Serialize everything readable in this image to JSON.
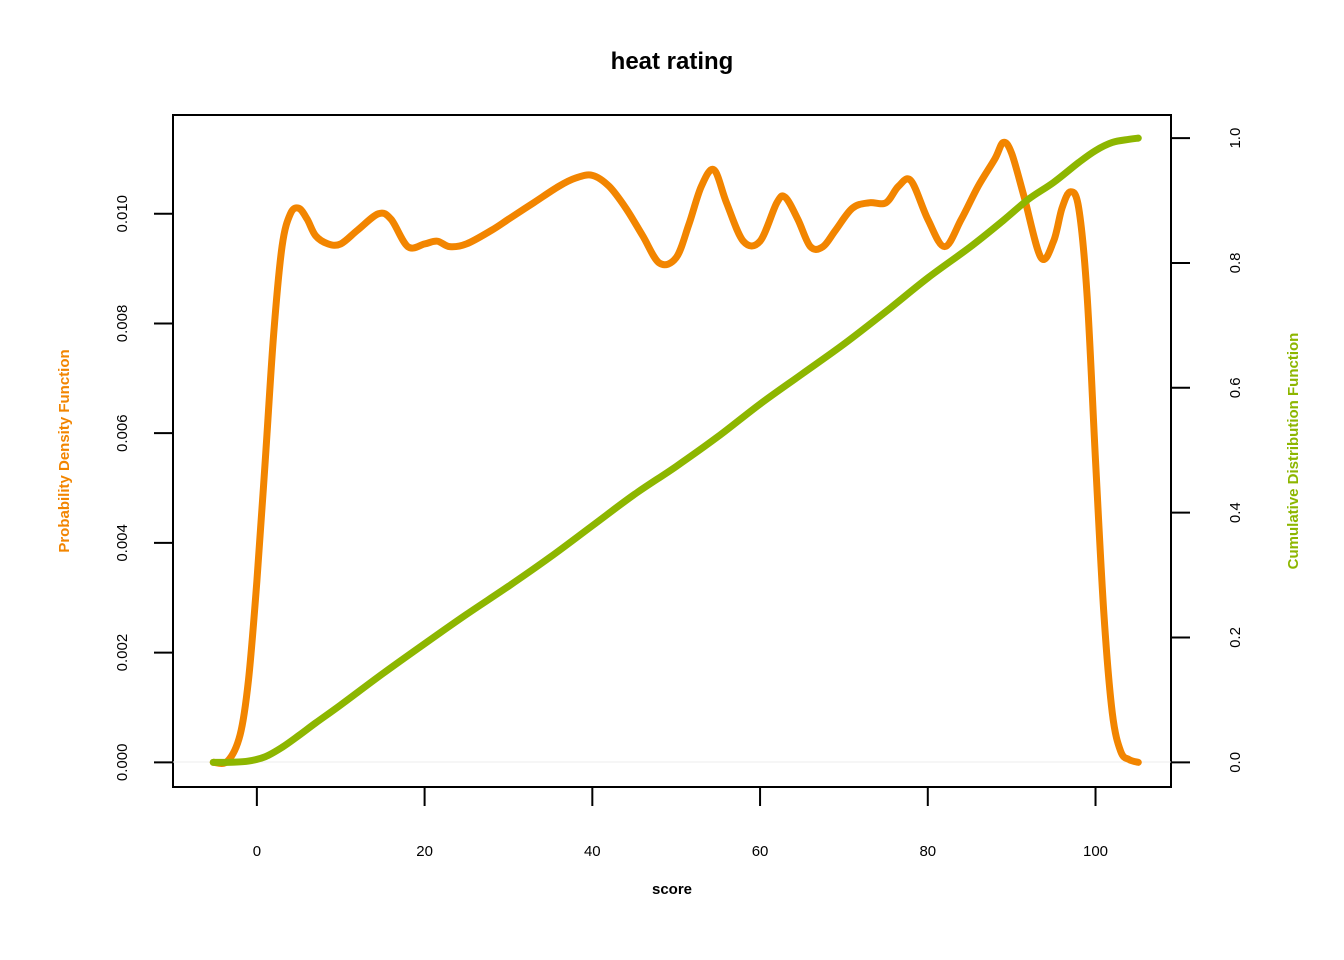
{
  "chart_data": {
    "type": "line",
    "title": "heat rating",
    "xlabel": "score",
    "ylabel_left": "Probability Density Function",
    "ylabel_right": "Cumulative Distribution Function",
    "xlim": [
      -10,
      109
    ],
    "ylim_left": [
      -0.00045,
      0.0118
    ],
    "ylim_right": [
      -0.0395,
      1.037
    ],
    "x_ticks": [
      0,
      20,
      40,
      60,
      80,
      100
    ],
    "x_tick_labels": [
      "0",
      "20",
      "40",
      "60",
      "80",
      "100"
    ],
    "y_left_ticks": [
      0,
      0.002,
      0.004,
      0.006,
      0.008,
      0.01
    ],
    "y_left_tick_labels": [
      "0.000",
      "0.002",
      "0.004",
      "0.006",
      "0.008",
      "0.010"
    ],
    "y_right_ticks": [
      0,
      0.2,
      0.4,
      0.6,
      0.8,
      1.0
    ],
    "y_right_tick_labels": [
      "0.0",
      "0.2",
      "0.4",
      "0.6",
      "0.8",
      "1.0"
    ],
    "grid": false,
    "series": [
      {
        "axis": "left",
        "color": "#F28500",
        "x": [
          -5.2,
          -3.5,
          -2,
          -1,
          0,
          1,
          2,
          3,
          4,
          5,
          6,
          7,
          8.5,
          10,
          12,
          14.5,
          16,
          18,
          20,
          21.5,
          23,
          25,
          28,
          30,
          33,
          36,
          38,
          40,
          42,
          44,
          46,
          48,
          50,
          51.5,
          53,
          54.5,
          56,
          58,
          60,
          62,
          63,
          64.5,
          66,
          67.5,
          69,
          71,
          73,
          75,
          76.5,
          78,
          80,
          82,
          84,
          86,
          88,
          89,
          90,
          91.5,
          93.5,
          95,
          96,
          97,
          98,
          99,
          100,
          101,
          102,
          103,
          104,
          105.1
        ],
        "values": [
          0,
          2e-05,
          0.0005,
          0.0015,
          0.0033,
          0.0055,
          0.0078,
          0.0094,
          0.01,
          0.0101,
          0.0099,
          0.0096,
          0.00945,
          0.00945,
          0.0097,
          0.01,
          0.0099,
          0.0094,
          0.00945,
          0.0095,
          0.0094,
          0.00945,
          0.0097,
          0.0099,
          0.0102,
          0.0105,
          0.01065,
          0.0107,
          0.0105,
          0.0101,
          0.0096,
          0.0091,
          0.0092,
          0.0098,
          0.0105,
          0.0108,
          0.0102,
          0.0095,
          0.0095,
          0.0102,
          0.0103,
          0.0099,
          0.0094,
          0.0094,
          0.0097,
          0.0101,
          0.0102,
          0.0102,
          0.0105,
          0.0106,
          0.0099,
          0.0094,
          0.0099,
          0.0105,
          0.011,
          0.0113,
          0.0111,
          0.0103,
          0.0092,
          0.0095,
          0.0101,
          0.0104,
          0.0101,
          0.0085,
          0.0055,
          0.0027,
          0.0009,
          0.0002,
          5e-05,
          0
        ]
      },
      {
        "axis": "right",
        "color": "#8DB600",
        "x": [
          -5.2,
          -3,
          -1,
          1,
          3,
          5,
          7,
          10,
          15,
          20,
          25,
          30,
          35,
          40,
          45,
          50,
          55,
          60,
          65,
          70,
          75,
          80,
          85,
          89,
          92,
          95,
          98,
          100,
          102,
          104,
          105.1
        ],
        "values": [
          0,
          0.0002,
          0.002,
          0.009,
          0.024,
          0.043,
          0.063,
          0.092,
          0.142,
          0.19,
          0.237,
          0.282,
          0.329,
          0.379,
          0.429,
          0.474,
          0.522,
          0.574,
          0.622,
          0.67,
          0.722,
          0.776,
          0.825,
          0.868,
          0.902,
          0.929,
          0.961,
          0.98,
          0.993,
          0.998,
          1.0
        ]
      }
    ]
  }
}
